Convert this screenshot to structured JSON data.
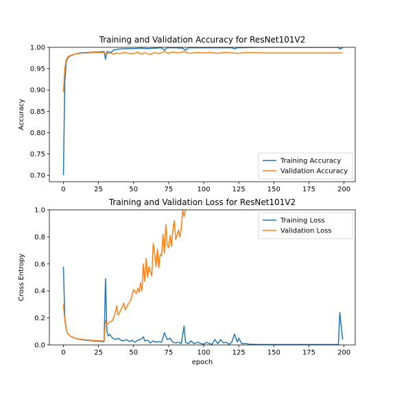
{
  "chart_data": [
    {
      "type": "line",
      "title": "Training and Validation Accuracy for ResNet101V2",
      "xlabel": "",
      "ylabel": "Accuracy",
      "xlim": [
        -10,
        208
      ],
      "ylim": [
        0.685,
        1.0
      ],
      "x_ticks": [
        0,
        25,
        50,
        75,
        100,
        125,
        150,
        175,
        200
      ],
      "y_ticks": [
        0.7,
        0.75,
        0.8,
        0.85,
        0.9,
        0.95,
        1.0
      ],
      "y_tick_labels": [
        "0.70",
        "0.75",
        "0.80",
        "0.85",
        "0.90",
        "0.95",
        "1.00"
      ],
      "legend_position": "lower-right",
      "series": [
        {
          "name": "Training Accuracy",
          "color": "#1f77b4",
          "points": [
            [
              0,
              0.7
            ],
            [
              1,
              0.92
            ],
            [
              2,
              0.965
            ],
            [
              3,
              0.975
            ],
            [
              5,
              0.98
            ],
            [
              8,
              0.984
            ],
            [
              12,
              0.987
            ],
            [
              18,
              0.988
            ],
            [
              24,
              0.989
            ],
            [
              29,
              0.99
            ],
            [
              30,
              0.972
            ],
            [
              31,
              0.99
            ],
            [
              34,
              0.988
            ],
            [
              36,
              0.994
            ],
            [
              40,
              0.996
            ],
            [
              45,
              0.997
            ],
            [
              50,
              0.997
            ],
            [
              55,
              0.998
            ],
            [
              60,
              0.997
            ],
            [
              65,
              0.998
            ],
            [
              70,
              0.999
            ],
            [
              72,
              0.993
            ],
            [
              74,
              0.999
            ],
            [
              80,
              0.999
            ],
            [
              85,
              0.998
            ],
            [
              87,
              0.993
            ],
            [
              89,
              0.999
            ],
            [
              100,
              0.999
            ],
            [
              110,
              0.999
            ],
            [
              120,
              0.999
            ],
            [
              122,
              0.996
            ],
            [
              124,
              0.999
            ],
            [
              140,
              1.0
            ],
            [
              160,
              1.0
            ],
            [
              180,
              1.0
            ],
            [
              196,
              1.0
            ],
            [
              197,
              0.996
            ],
            [
              199,
              0.999
            ]
          ]
        },
        {
          "name": "Validation Accuracy",
          "color": "#ff7f0e",
          "points": [
            [
              0,
              0.895
            ],
            [
              1,
              0.95
            ],
            [
              2,
              0.97
            ],
            [
              3,
              0.977
            ],
            [
              5,
              0.981
            ],
            [
              8,
              0.984
            ],
            [
              12,
              0.986
            ],
            [
              18,
              0.987
            ],
            [
              24,
              0.988
            ],
            [
              29,
              0.988
            ],
            [
              30,
              0.984
            ],
            [
              33,
              0.987
            ],
            [
              36,
              0.984
            ],
            [
              38,
              0.987
            ],
            [
              40,
              0.985
            ],
            [
              43,
              0.988
            ],
            [
              46,
              0.986
            ],
            [
              50,
              0.985
            ],
            [
              53,
              0.989
            ],
            [
              55,
              0.984
            ],
            [
              58,
              0.987
            ],
            [
              62,
              0.983
            ],
            [
              65,
              0.988
            ],
            [
              68,
              0.985
            ],
            [
              72,
              0.99
            ],
            [
              75,
              0.986
            ],
            [
              78,
              0.989
            ],
            [
              82,
              0.987
            ],
            [
              86,
              0.99
            ],
            [
              90,
              0.986
            ],
            [
              95,
              0.988
            ],
            [
              100,
              0.987
            ],
            [
              105,
              0.988
            ],
            [
              110,
              0.986
            ],
            [
              115,
              0.988
            ],
            [
              120,
              0.987
            ],
            [
              125,
              0.986
            ],
            [
              130,
              0.988
            ],
            [
              140,
              0.987
            ],
            [
              150,
              0.987
            ],
            [
              160,
              0.987
            ],
            [
              170,
              0.987
            ],
            [
              180,
              0.987
            ],
            [
              190,
              0.987
            ],
            [
              199,
              0.987
            ]
          ]
        }
      ]
    },
    {
      "type": "line",
      "title": "Training and Validation Loss for ResNet101V2",
      "xlabel": "epoch",
      "ylabel": "Cross Entropy",
      "xlim": [
        -10,
        208
      ],
      "ylim": [
        0.0,
        1.0
      ],
      "x_ticks": [
        0,
        25,
        50,
        75,
        100,
        125,
        150,
        175,
        200
      ],
      "y_ticks": [
        0.0,
        0.2,
        0.4,
        0.6,
        0.8,
        1.0
      ],
      "y_tick_labels": [
        "0.0",
        "0.2",
        "0.4",
        "0.6",
        "0.8",
        "1.0"
      ],
      "legend_position": "upper-right",
      "series": [
        {
          "name": "Training Loss",
          "color": "#1f77b4",
          "points": [
            [
              0,
              0.58
            ],
            [
              1,
              0.2
            ],
            [
              2,
              0.12
            ],
            [
              3,
              0.085
            ],
            [
              5,
              0.065
            ],
            [
              8,
              0.05
            ],
            [
              12,
              0.04
            ],
            [
              18,
              0.033
            ],
            [
              24,
              0.028
            ],
            [
              29,
              0.025
            ],
            [
              30,
              0.49
            ],
            [
              31,
              0.1
            ],
            [
              32,
              0.065
            ],
            [
              33,
              0.08
            ],
            [
              35,
              0.05
            ],
            [
              37,
              0.04
            ],
            [
              39,
              0.05
            ],
            [
              41,
              0.035
            ],
            [
              43,
              0.03
            ],
            [
              45,
              0.04
            ],
            [
              47,
              0.025
            ],
            [
              49,
              0.035
            ],
            [
              51,
              0.02
            ],
            [
              53,
              0.035
            ],
            [
              55,
              0.04
            ],
            [
              57,
              0.06
            ],
            [
              58,
              0.03
            ],
            [
              60,
              0.035
            ],
            [
              62,
              0.015
            ],
            [
              64,
              0.03
            ],
            [
              66,
              0.02
            ],
            [
              68,
              0.025
            ],
            [
              70,
              0.02
            ],
            [
              72,
              0.09
            ],
            [
              74,
              0.04
            ],
            [
              76,
              0.05
            ],
            [
              78,
              0.02
            ],
            [
              80,
              0.015
            ],
            [
              82,
              0.02
            ],
            [
              84,
              0.01
            ],
            [
              86,
              0.14
            ],
            [
              87,
              0.02
            ],
            [
              89,
              0.01
            ],
            [
              91,
              0.03
            ],
            [
              93,
              0.01
            ],
            [
              96,
              0.02
            ],
            [
              98,
              0.01
            ],
            [
              100,
              0.005
            ],
            [
              102,
              0.02
            ],
            [
              104,
              0.01
            ],
            [
              106,
              0.005
            ],
            [
              108,
              0.04
            ],
            [
              110,
              0.01
            ],
            [
              112,
              0.04
            ],
            [
              114,
              0.015
            ],
            [
              116,
              0.02
            ],
            [
              118,
              0.005
            ],
            [
              120,
              0.02
            ],
            [
              122,
              0.08
            ],
            [
              124,
              0.02
            ],
            [
              125,
              0.05
            ],
            [
              127,
              0.01
            ],
            [
              130,
              0.01
            ],
            [
              133,
              0.005
            ],
            [
              140,
              0.003
            ],
            [
              160,
              0.003
            ],
            [
              180,
              0.003
            ],
            [
              196,
              0.003
            ],
            [
              197,
              0.24
            ],
            [
              199,
              0.04
            ]
          ]
        },
        {
          "name": "Validation Loss",
          "color": "#ff7f0e",
          "points": [
            [
              0,
              0.3
            ],
            [
              1,
              0.18
            ],
            [
              2,
              0.12
            ],
            [
              3,
              0.085
            ],
            [
              5,
              0.065
            ],
            [
              8,
              0.05
            ],
            [
              12,
              0.042
            ],
            [
              18,
              0.036
            ],
            [
              24,
              0.032
            ],
            [
              29,
              0.03
            ],
            [
              30,
              0.18
            ],
            [
              31,
              0.15
            ],
            [
              33,
              0.17
            ],
            [
              35,
              0.18
            ],
            [
              37,
              0.24
            ],
            [
              38,
              0.29
            ],
            [
              39,
              0.22
            ],
            [
              41,
              0.26
            ],
            [
              43,
              0.31
            ],
            [
              44,
              0.26
            ],
            [
              46,
              0.3
            ],
            [
              48,
              0.33
            ],
            [
              50,
              0.41
            ],
            [
              52,
              0.38
            ],
            [
              53,
              0.42
            ],
            [
              54,
              0.39
            ],
            [
              55,
              0.46
            ],
            [
              56,
              0.4
            ],
            [
              57,
              0.6
            ],
            [
              58,
              0.47
            ],
            [
              59,
              0.64
            ],
            [
              60,
              0.5
            ],
            [
              61,
              0.58
            ],
            [
              63,
              0.51
            ],
            [
              64,
              0.75
            ],
            [
              65,
              0.68
            ],
            [
              66,
              0.58
            ],
            [
              67,
              0.71
            ],
            [
              68,
              0.57
            ],
            [
              69,
              0.67
            ],
            [
              70,
              0.66
            ],
            [
              71,
              0.82
            ],
            [
              72,
              0.68
            ],
            [
              73,
              0.89
            ],
            [
              74,
              0.74
            ],
            [
              75,
              0.72
            ],
            [
              76,
              0.81
            ],
            [
              77,
              0.73
            ],
            [
              78,
              0.85
            ],
            [
              79,
              0.92
            ],
            [
              80,
              0.78
            ],
            [
              81,
              0.81
            ],
            [
              82,
              0.85
            ],
            [
              83,
              0.8
            ],
            [
              84,
              0.86
            ],
            [
              85,
              1.0
            ],
            [
              86,
              0.95
            ],
            [
              87,
              1.0
            ]
          ]
        }
      ]
    }
  ]
}
